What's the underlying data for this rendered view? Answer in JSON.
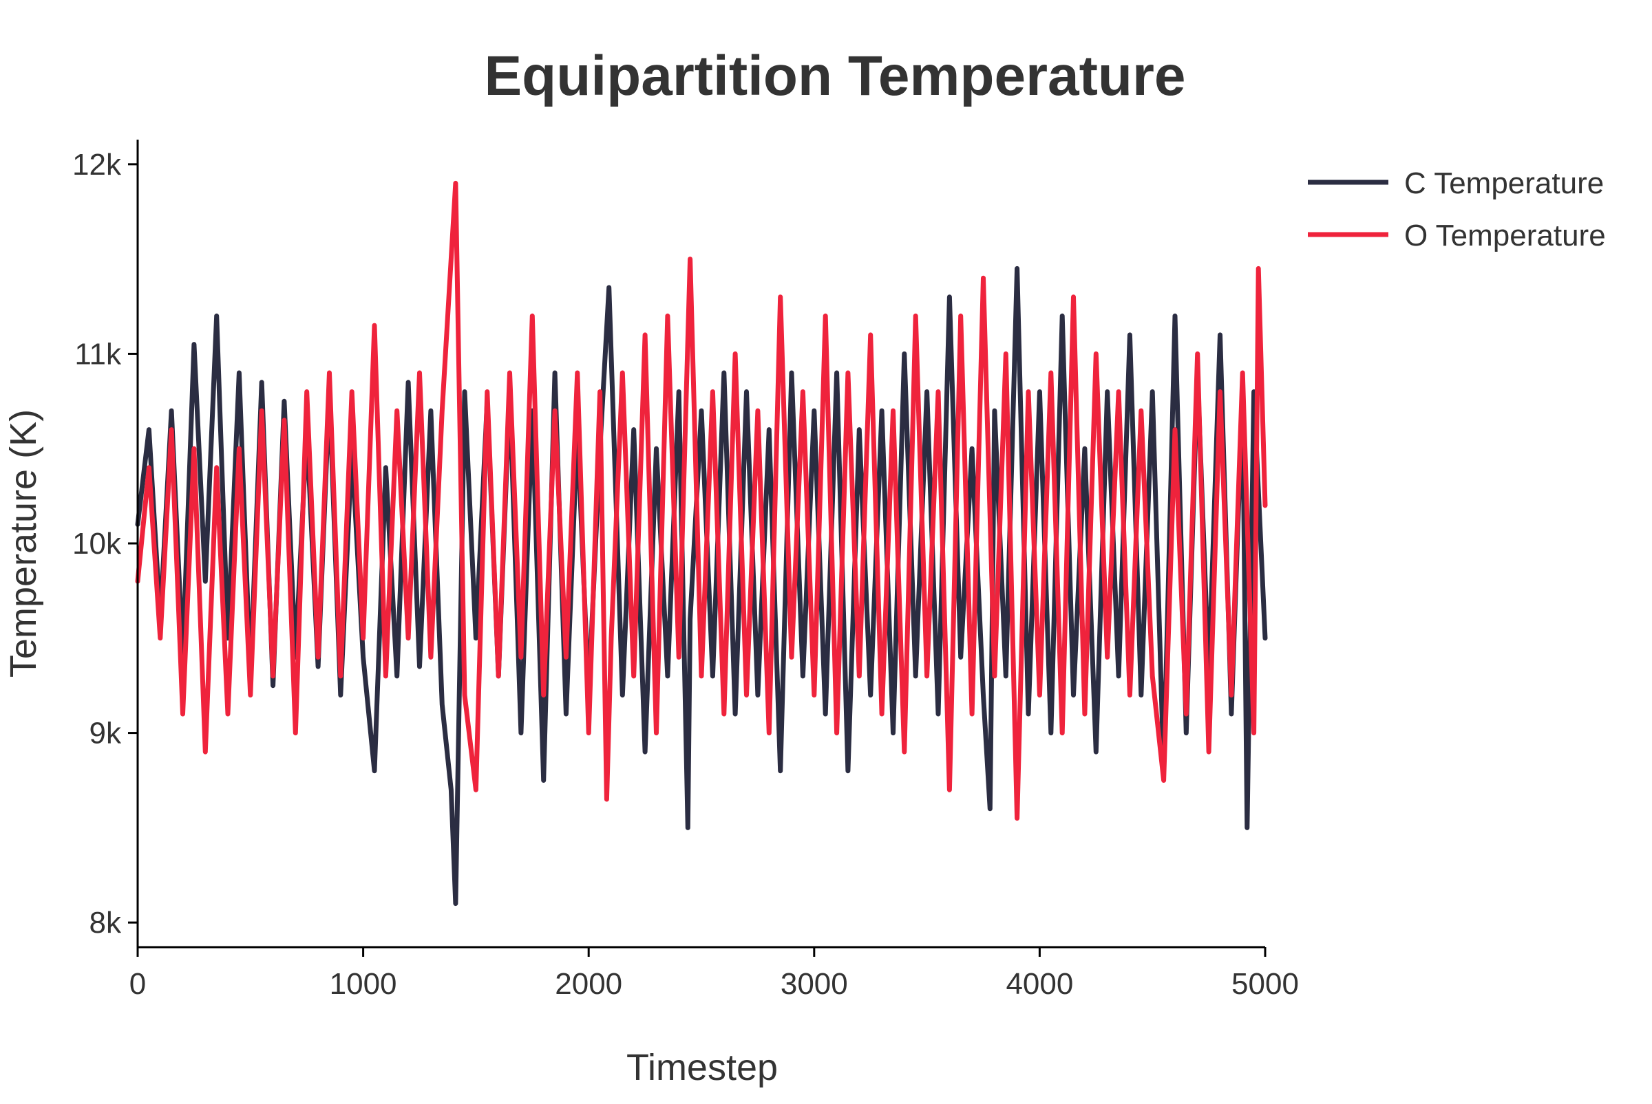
{
  "chart_data": {
    "type": "line",
    "title": "Equipartition Temperature",
    "xlabel": "Timestep",
    "ylabel": "Temperature (K)",
    "xlim": [
      0,
      5000
    ],
    "ylim": [
      7870,
      12130
    ],
    "x_ticks": [
      {
        "value": 0,
        "label": "0"
      },
      {
        "value": 1000,
        "label": "1000"
      },
      {
        "value": 2000,
        "label": "2000"
      },
      {
        "value": 3000,
        "label": "3000"
      },
      {
        "value": 4000,
        "label": "4000"
      },
      {
        "value": 5000,
        "label": "5000"
      }
    ],
    "y_ticks": [
      {
        "value": 8000,
        "label": "8k"
      },
      {
        "value": 9000,
        "label": "9k"
      },
      {
        "value": 10000,
        "label": "10k"
      },
      {
        "value": 11000,
        "label": "11k"
      },
      {
        "value": 12000,
        "label": "12k"
      }
    ],
    "grid": false,
    "legend_position": "top-right",
    "series": [
      {
        "name": "C Temperature",
        "color": "#2b2d42",
        "x": [
          0,
          50,
          100,
          150,
          200,
          250,
          300,
          350,
          400,
          450,
          500,
          550,
          600,
          650,
          700,
          750,
          800,
          850,
          900,
          950,
          1000,
          1050,
          1100,
          1150,
          1200,
          1250,
          1300,
          1350,
          1390,
          1410,
          1450,
          1500,
          1550,
          1600,
          1650,
          1700,
          1750,
          1800,
          1850,
          1900,
          1950,
          2000,
          2050,
          2090,
          2150,
          2200,
          2250,
          2300,
          2350,
          2400,
          2440,
          2450,
          2500,
          2550,
          2600,
          2650,
          2700,
          2750,
          2800,
          2850,
          2900,
          2950,
          3000,
          3050,
          3100,
          3150,
          3200,
          3250,
          3300,
          3350,
          3400,
          3450,
          3500,
          3550,
          3600,
          3650,
          3700,
          3750,
          3780,
          3800,
          3850,
          3900,
          3950,
          4000,
          4050,
          4100,
          4150,
          4200,
          4250,
          4300,
          4350,
          4400,
          4450,
          4500,
          4550,
          4600,
          4650,
          4700,
          4750,
          4800,
          4850,
          4900,
          4920,
          4950,
          5000
        ],
        "values": [
          10100,
          10600,
          9600,
          10700,
          9400,
          11050,
          9800,
          11200,
          9500,
          10900,
          9300,
          10850,
          9250,
          10750,
          9400,
          10600,
          9350,
          10800,
          9200,
          10500,
          9400,
          8800,
          10400,
          9300,
          10850,
          9350,
          10700,
          9150,
          8700,
          8100,
          10800,
          9500,
          10750,
          9300,
          10800,
          9000,
          10700,
          8750,
          10900,
          9100,
          10600,
          9200,
          10500,
          11350,
          9200,
          10600,
          8900,
          10500,
          9300,
          10800,
          8500,
          9600,
          10700,
          9300,
          10900,
          9100,
          10800,
          9200,
          10600,
          8800,
          10900,
          9300,
          10700,
          9100,
          10900,
          8800,
          10600,
          9200,
          10700,
          9000,
          11000,
          9300,
          10800,
          9100,
          11300,
          9400,
          10500,
          9200,
          8600,
          10700,
          9300,
          11450,
          9100,
          10800,
          9000,
          11200,
          9200,
          10500,
          8900,
          10800,
          9300,
          11100,
          9200,
          10800,
          8800,
          11200,
          9000,
          10900,
          9300,
          11100,
          9100,
          10800,
          8500,
          10800,
          9500
        ]
      },
      {
        "name": "O Temperature",
        "color": "#ef233c",
        "x": [
          0,
          50,
          100,
          150,
          200,
          250,
          300,
          350,
          400,
          450,
          500,
          550,
          600,
          650,
          700,
          750,
          800,
          850,
          900,
          950,
          1000,
          1050,
          1100,
          1150,
          1200,
          1250,
          1300,
          1350,
          1380,
          1410,
          1450,
          1500,
          1550,
          1600,
          1650,
          1700,
          1750,
          1800,
          1850,
          1900,
          1950,
          2000,
          2050,
          2080,
          2100,
          2150,
          2200,
          2250,
          2300,
          2350,
          2400,
          2450,
          2500,
          2550,
          2600,
          2650,
          2700,
          2750,
          2800,
          2850,
          2900,
          2950,
          3000,
          3050,
          3100,
          3150,
          3200,
          3250,
          3300,
          3350,
          3400,
          3450,
          3500,
          3550,
          3600,
          3650,
          3700,
          3750,
          3800,
          3850,
          3900,
          3950,
          4000,
          4050,
          4100,
          4150,
          4200,
          4250,
          4300,
          4350,
          4400,
          4450,
          4500,
          4550,
          4600,
          4650,
          4700,
          4750,
          4800,
          4850,
          4900,
          4950,
          4970,
          5000
        ],
        "values": [
          9800,
          10400,
          9500,
          10600,
          9100,
          10500,
          8900,
          10400,
          9100,
          10500,
          9200,
          10700,
          9300,
          10650,
          9000,
          10800,
          9400,
          10900,
          9300,
          10800,
          9500,
          11150,
          9300,
          10700,
          9500,
          10900,
          9400,
          10700,
          11300,
          11900,
          9200,
          8700,
          10800,
          9300,
          10900,
          9400,
          11200,
          9200,
          10700,
          9400,
          10900,
          9000,
          10800,
          8650,
          9500,
          10900,
          9300,
          11100,
          9000,
          11200,
          9400,
          11500,
          9300,
          10800,
          9100,
          11000,
          9200,
          10700,
          9000,
          11300,
          9400,
          10800,
          9200,
          11200,
          9000,
          10900,
          9300,
          11100,
          9100,
          10700,
          8900,
          11200,
          9300,
          10800,
          8700,
          11200,
          9100,
          11400,
          9300,
          11000,
          8550,
          10800,
          9200,
          10900,
          9000,
          11300,
          9100,
          11000,
          9400,
          10800,
          9200,
          10700,
          9300,
          8750,
          10600,
          9100,
          11000,
          8900,
          10800,
          9200,
          10900,
          9000,
          11450,
          10200
        ]
      }
    ]
  }
}
